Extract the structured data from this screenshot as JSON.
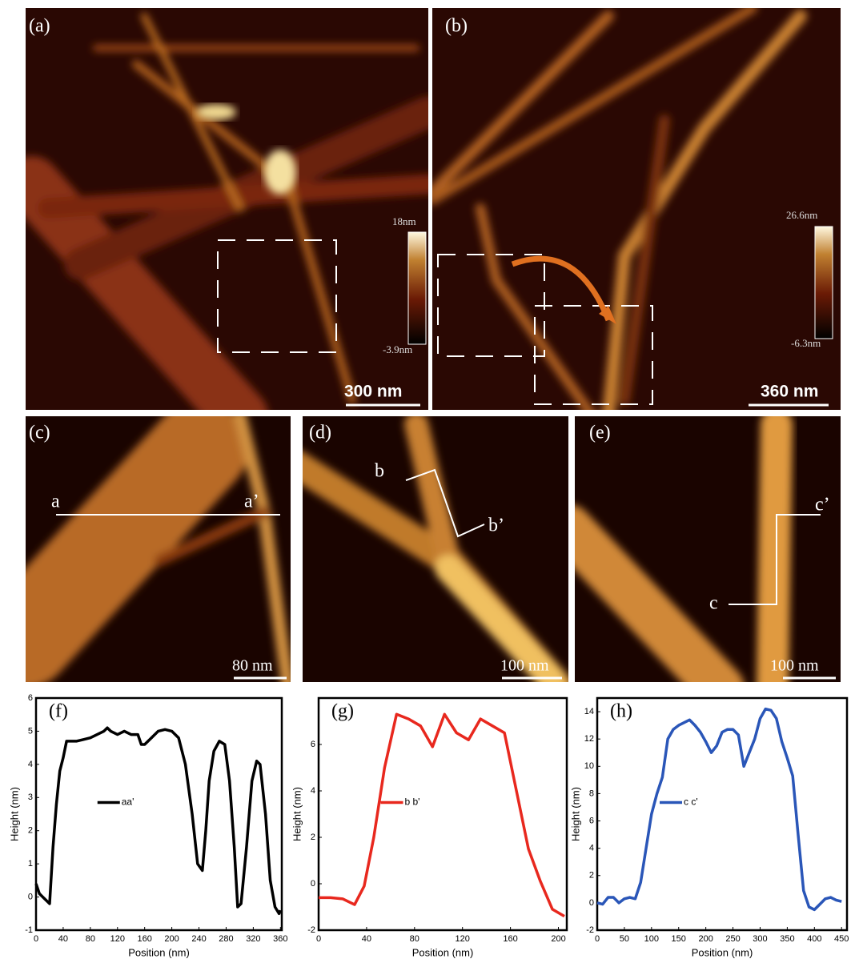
{
  "images": [
    {
      "label": "(a)",
      "scale_bar": "300 nm",
      "colorbar": [
        "18nm",
        "-3.9nm"
      ]
    },
    {
      "label": "(b)",
      "scale_bar": "360 nm",
      "colorbar": [
        "26.6nm",
        "-6.3nm"
      ]
    },
    {
      "label": "(c)",
      "scale_bar": "80 nm",
      "line_labels": [
        "a",
        "a’"
      ]
    },
    {
      "label": "(d)",
      "scale_bar": "100 nm",
      "line_labels": [
        "b",
        "b’"
      ]
    },
    {
      "label": "(e)",
      "scale_bar": "100 nm",
      "line_labels": [
        "c",
        "c’"
      ]
    }
  ],
  "chart_data": [
    {
      "type": "line",
      "title": "(f)",
      "x_label": "Position (nm)",
      "y_label": "Height (nm)",
      "x": [
        0,
        5,
        10,
        15,
        20,
        25,
        30,
        35,
        40,
        45,
        50,
        60,
        70,
        80,
        90,
        100,
        105,
        110,
        120,
        130,
        140,
        150,
        155,
        160,
        170,
        180,
        190,
        200,
        210,
        220,
        230,
        238,
        245,
        250,
        255,
        262,
        270,
        278,
        285,
        292,
        297,
        302,
        310,
        318,
        325,
        330,
        338,
        345,
        352,
        358,
        360
      ],
      "series": [
        {
          "name": "aa'",
          "color": "#000000",
          "values": [
            0.4,
            0.1,
            0,
            -0.1,
            -0.2,
            1.5,
            2.8,
            3.8,
            4.2,
            4.7,
            4.7,
            4.7,
            4.75,
            4.8,
            4.9,
            5.0,
            5.1,
            5.0,
            4.9,
            5.0,
            4.9,
            4.9,
            4.6,
            4.6,
            4.8,
            5.0,
            5.05,
            5.0,
            4.8,
            4.0,
            2.5,
            1.0,
            0.8,
            2.0,
            3.5,
            4.4,
            4.7,
            4.6,
            3.5,
            1.5,
            -0.3,
            -0.2,
            1.5,
            3.5,
            4.1,
            4.0,
            2.5,
            0.5,
            -0.3,
            -0.5,
            -0.4
          ]
        }
      ],
      "xlim": [
        0,
        362
      ],
      "ylim": [
        -1,
        6
      ],
      "xticks": [
        0,
        40,
        80,
        120,
        160,
        200,
        240,
        280,
        320,
        360
      ],
      "yticks": [
        -1,
        0,
        1,
        2,
        3,
        4,
        5,
        6
      ]
    },
    {
      "type": "line",
      "title": "(g)",
      "x_label": "Position (nm)",
      "y_label": "Height (nm)",
      "x": [
        0,
        10,
        20,
        30,
        38,
        46,
        55,
        65,
        75,
        85,
        95,
        105,
        115,
        125,
        135,
        145,
        155,
        165,
        175,
        185,
        195,
        205
      ],
      "series": [
        {
          "name": "b b'",
          "color": "#e8281e",
          "values": [
            -0.6,
            -0.6,
            -0.65,
            -0.9,
            -0.1,
            2,
            5,
            7.3,
            7.1,
            6.8,
            5.9,
            7.3,
            6.5,
            6.2,
            7.1,
            6.8,
            6.5,
            4,
            1.5,
            0.1,
            -1.1,
            -1.4
          ]
        }
      ],
      "xlim": [
        0,
        207
      ],
      "ylim": [
        -2,
        8
      ],
      "xticks": [
        0,
        40,
        80,
        120,
        160,
        200
      ],
      "yticks": [
        -2,
        0,
        2,
        4,
        6
      ]
    },
    {
      "type": "line",
      "title": "(h)",
      "x_label": "Position (nm)",
      "y_label": "Height (nm)",
      "x": [
        0,
        10,
        20,
        30,
        40,
        50,
        60,
        70,
        80,
        90,
        100,
        110,
        120,
        130,
        140,
        150,
        160,
        170,
        180,
        190,
        200,
        210,
        220,
        230,
        240,
        250,
        260,
        270,
        280,
        290,
        300,
        310,
        320,
        330,
        340,
        350,
        360,
        370,
        380,
        390,
        400,
        410,
        420,
        430,
        440,
        450
      ],
      "series": [
        {
          "name": "c c'",
          "color": "#2a56b8",
          "values": [
            0,
            -0.1,
            0.4,
            0.4,
            0.0,
            0.3,
            0.4,
            0.3,
            1.5,
            4,
            6.5,
            8,
            9.2,
            12,
            12.7,
            13,
            13.2,
            13.4,
            13,
            12.5,
            11.8,
            11,
            11.5,
            12.5,
            12.7,
            12.7,
            12.3,
            10,
            11,
            12,
            13.5,
            14.2,
            14.1,
            13.5,
            11.8,
            10.6,
            9.3,
            5,
            0.9,
            -0.3,
            -0.5,
            -0.1,
            0.3,
            0.4,
            0.2,
            0.1
          ]
        }
      ],
      "xlim": [
        0,
        460
      ],
      "ylim": [
        -2,
        15
      ],
      "xticks": [
        0,
        50,
        100,
        150,
        200,
        250,
        300,
        350,
        400,
        450
      ],
      "yticks": [
        -2,
        0,
        2,
        4,
        6,
        8,
        10,
        12,
        14
      ]
    }
  ]
}
